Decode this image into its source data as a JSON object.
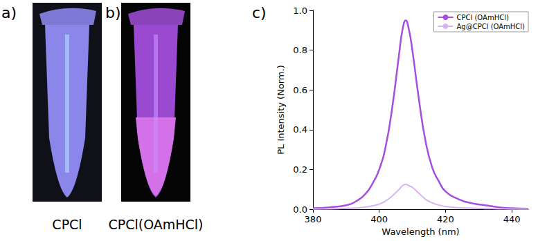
{
  "panels": [
    {
      "label": "a)",
      "caption": "CPCl"
    },
    {
      "label": "b)",
      "caption": "CPCl(OAmHCl)"
    },
    {
      "label": "c)"
    }
  ],
  "chart_data": {
    "type": "line",
    "x": [
      380,
      385,
      390,
      393,
      396,
      398,
      400,
      402,
      404,
      406,
      407,
      408,
      409,
      410,
      412,
      414,
      416,
      418,
      420,
      424,
      428,
      432,
      436,
      440,
      445
    ],
    "series": [
      {
        "name": "CPCl (OAmHCl)",
        "color": "#a64ee0",
        "values": [
          0.005,
          0.01,
          0.02,
          0.04,
          0.08,
          0.13,
          0.2,
          0.32,
          0.52,
          0.78,
          0.9,
          0.95,
          0.9,
          0.8,
          0.55,
          0.34,
          0.21,
          0.14,
          0.09,
          0.05,
          0.03,
          0.02,
          0.01,
          0.005,
          0.003
        ]
      },
      {
        "name": "Ag@CPCl (OAmHCl)",
        "color": "#d8b4f0",
        "values": [
          0.001,
          0.002,
          0.004,
          0.006,
          0.011,
          0.017,
          0.026,
          0.042,
          0.068,
          0.1,
          0.118,
          0.125,
          0.118,
          0.11,
          0.08,
          0.05,
          0.032,
          0.021,
          0.014,
          0.008,
          0.005,
          0.003,
          0.002,
          0.001,
          0.001
        ]
      }
    ],
    "xlabel": "Wavelength (nm)",
    "ylabel": "PL Intensity (Norm.)",
    "xlim": [
      380,
      445
    ],
    "xticks": [
      380,
      400,
      420,
      440
    ],
    "ylim": [
      0,
      1
    ],
    "yticks": [
      {
        "value": 0,
        "label": "0.0"
      },
      {
        "value": 0.2,
        "label": "0.2"
      },
      {
        "value": 0.4,
        "label": "0.4"
      },
      {
        "value": 0.6,
        "label": "0.6"
      },
      {
        "value": 0.8,
        "label": "0.8"
      },
      {
        "value": 1,
        "label": "1.0"
      }
    ],
    "grid": false,
    "legend": "upper right"
  }
}
